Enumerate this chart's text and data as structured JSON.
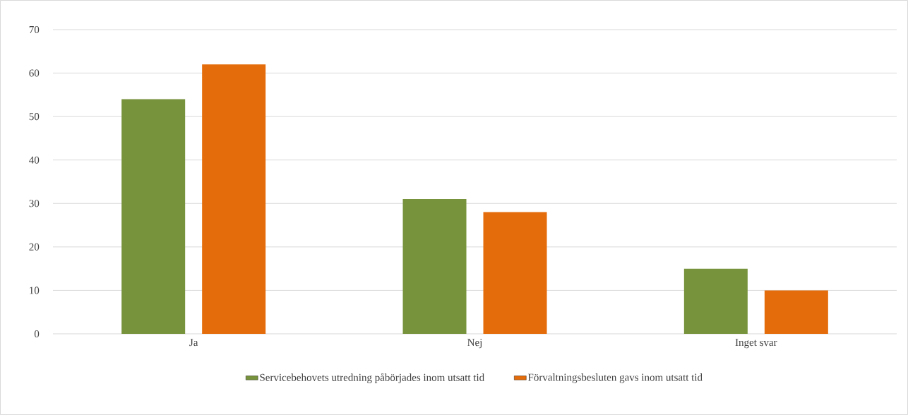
{
  "chart_data": {
    "type": "bar",
    "categories": [
      "Ja",
      "Nej",
      "Inget svar"
    ],
    "series": [
      {
        "name": "Servicebehovets utredning påbörjades inom utsatt tid",
        "color": "#77933c",
        "values": [
          54,
          31,
          15
        ]
      },
      {
        "name": "Förvaltningsbesluten gavs inom utsatt tid",
        "color": "#e46c0a",
        "values": [
          62,
          28,
          10
        ]
      }
    ],
    "ylim": [
      0,
      70
    ],
    "yticks": [
      0,
      10,
      20,
      30,
      40,
      50,
      60,
      70
    ],
    "grid": "y",
    "legend": "bottom"
  }
}
